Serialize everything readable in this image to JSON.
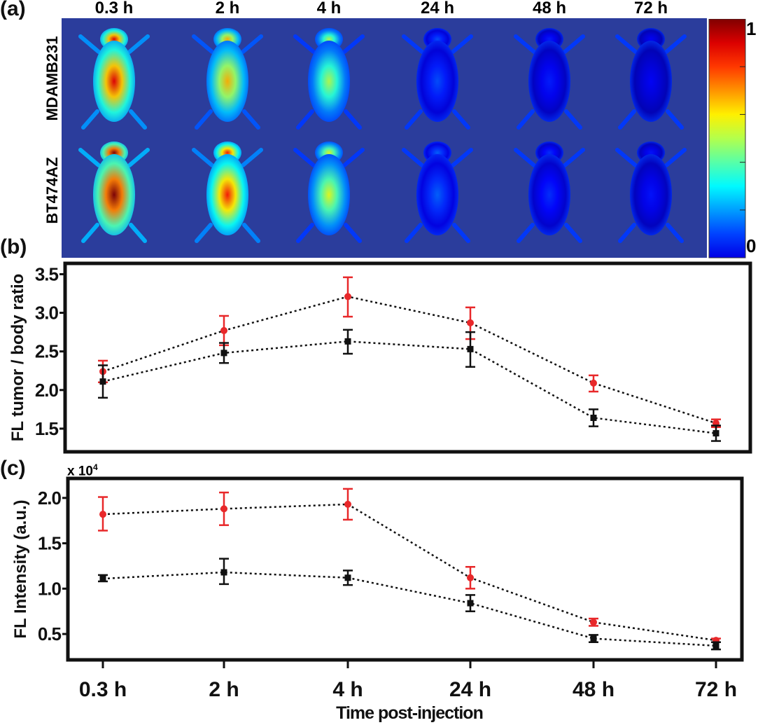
{
  "panel_a": {
    "label": "(a)",
    "time_labels": [
      "0.3 h",
      "2 h",
      "4 h",
      "24 h",
      "48 h",
      "72 h"
    ],
    "row_labels": [
      "MDAMB231",
      "BT474AZ"
    ],
    "colorbar": {
      "max_label": "1",
      "min_label": "0",
      "colormap": "jet"
    },
    "background_color": "#2b3d9c",
    "signal_levels": [
      [
        0.9,
        0.7,
        0.55,
        0.2,
        0.15,
        0.12
      ],
      [
        1.0,
        0.85,
        0.6,
        0.22,
        0.17,
        0.14
      ]
    ]
  },
  "chart_data": [
    {
      "panel_label": "(b)",
      "type": "line",
      "categories": [
        "0.3 h",
        "2 h",
        "4 h",
        "24 h",
        "48 h",
        "72 h"
      ],
      "ylabel": "FL tumor / body ratio",
      "xlabel": "",
      "ylim": [
        1.2,
        3.64
      ],
      "yticks": [
        "1.5",
        "2.0",
        "2.5",
        "3.0",
        "3.5"
      ],
      "grid": false,
      "series": [
        {
          "color": "#e8282a",
          "marker": "circle",
          "values": [
            2.24,
            2.77,
            3.21,
            2.87,
            2.09,
            1.57
          ],
          "err_low": [
            2.1,
            2.58,
            2.95,
            2.66,
            1.98,
            1.52
          ],
          "err_high": [
            2.38,
            2.96,
            3.46,
            3.07,
            2.19,
            1.62
          ]
        },
        {
          "color": "#111111",
          "marker": "square",
          "values": [
            2.11,
            2.48,
            2.63,
            2.53,
            1.64,
            1.44
          ],
          "err_low": [
            1.9,
            2.35,
            2.47,
            2.3,
            1.53,
            1.34
          ],
          "err_high": [
            2.32,
            2.61,
            2.78,
            2.75,
            1.75,
            1.54
          ]
        }
      ]
    },
    {
      "panel_label": "(c)",
      "type": "line",
      "categories": [
        "0.3 h",
        "2 h",
        "4 h",
        "24 h",
        "48 h",
        "72 h"
      ],
      "ylabel": "FL Intensity (a.u.)",
      "xlabel": "Time post-injection",
      "y_multiplier": "x 10",
      "y_multiplier_exp": "4",
      "ylim": [
        0.215,
        2.215
      ],
      "yticks": [
        "0.5",
        "1.0",
        "1.5",
        "2.0"
      ],
      "grid": false,
      "series": [
        {
          "color": "#e8282a",
          "marker": "circle",
          "values": [
            1.82,
            1.88,
            1.93,
            1.12,
            0.63,
            0.43
          ],
          "err_low": [
            1.64,
            1.7,
            1.76,
            1.0,
            0.59,
            0.41
          ],
          "err_high": [
            2.01,
            2.06,
            2.1,
            1.24,
            0.67,
            0.45
          ]
        },
        {
          "color": "#111111",
          "marker": "square",
          "values": [
            1.11,
            1.18,
            1.12,
            0.84,
            0.45,
            0.37
          ],
          "err_low": [
            1.08,
            1.05,
            1.04,
            0.75,
            0.41,
            0.33
          ],
          "err_high": [
            1.15,
            1.33,
            1.2,
            0.93,
            0.49,
            0.41
          ]
        }
      ]
    }
  ]
}
